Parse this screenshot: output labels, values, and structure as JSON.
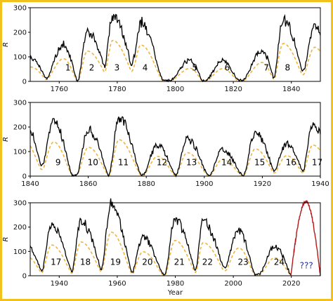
{
  "colors": {
    "frame": "#f2c11b",
    "observed": "#000000",
    "smoothed": "#f0b43c",
    "prediction": "#b01818",
    "unknown_label": "#1f2fa8"
  },
  "chart_data": [
    {
      "type": "line",
      "ylabel": "R",
      "xlim": [
        1750,
        1850
      ],
      "ylim": [
        0,
        300
      ],
      "xticks": [
        1760,
        1780,
        1800,
        1820,
        1840
      ],
      "yticks": [
        0,
        100,
        200,
        300
      ],
      "cycles": [
        {
          "label": "1",
          "min": 1755.2,
          "max": 1761.5,
          "peak": 145
        },
        {
          "label": "2",
          "min": 1766.5,
          "max": 1769.7,
          "peak": 195
        },
        {
          "label": "3",
          "min": 1775.5,
          "max": 1778.4,
          "peak": 265
        },
        {
          "label": "4",
          "min": 1784.7,
          "max": 1788.1,
          "peak": 235
        },
        {
          "label": "5",
          "min": 1798.3,
          "max": 1805.2,
          "peak": 82
        },
        {
          "label": "6",
          "min": 1810.6,
          "max": 1816.4,
          "peak": 80
        },
        {
          "label": "7",
          "min": 1823.3,
          "max": 1829.9,
          "peak": 120
        },
        {
          "label": "8",
          "min": 1833.9,
          "max": 1837.2,
          "peak": 245
        }
      ],
      "series": [
        {
          "style": "solid"
        },
        {
          "style": "dashed"
        }
      ]
    },
    {
      "type": "line",
      "ylabel": "R",
      "xlim": [
        1840,
        1940
      ],
      "ylim": [
        0,
        300
      ],
      "xticks": [
        1840,
        1860,
        1880,
        1900,
        1920,
        1940
      ],
      "yticks": [
        0,
        100,
        200,
        300
      ],
      "cycles": [
        {
          "label": "9",
          "min": 1843.5,
          "max": 1848.1,
          "peak": 220
        },
        {
          "label": "10",
          "min": 1856.0,
          "max": 1860.1,
          "peak": 185
        },
        {
          "label": "11",
          "min": 1867.2,
          "max": 1870.6,
          "peak": 235
        },
        {
          "label": "12",
          "min": 1878.9,
          "max": 1883.9,
          "peak": 125
        },
        {
          "label": "13",
          "min": 1890.2,
          "max": 1894.1,
          "peak": 150
        },
        {
          "label": "14",
          "min": 1902.0,
          "max": 1906.2,
          "peak": 105
        },
        {
          "label": "15",
          "min": 1913.6,
          "max": 1917.6,
          "peak": 175
        },
        {
          "label": "16",
          "min": 1923.6,
          "max": 1928.4,
          "peak": 130
        },
        {
          "label": "17",
          "min": 1933.8,
          "max": 1937.4,
          "peak": 200
        }
      ],
      "series": [
        {
          "style": "solid"
        },
        {
          "style": "dashed"
        }
      ]
    },
    {
      "type": "line",
      "ylabel": "R",
      "xlabel": "Year",
      "xlim": [
        1930,
        2030
      ],
      "ylim": [
        0,
        300
      ],
      "xticks": [
        1940,
        1960,
        1980,
        2000,
        2020
      ],
      "yticks": [
        0,
        100,
        200,
        300
      ],
      "cycles": [
        {
          "label": "17",
          "min": 1933.8,
          "max": 1937.4,
          "peak": 200
        },
        {
          "label": "18",
          "min": 1944.2,
          "max": 1947.5,
          "peak": 220
        },
        {
          "label": "19",
          "min": 1954.3,
          "max": 1957.9,
          "peak": 285
        },
        {
          "label": "20",
          "min": 1964.9,
          "max": 1968.9,
          "peak": 155
        },
        {
          "label": "21",
          "min": 1976.5,
          "max": 1979.9,
          "peak": 230
        },
        {
          "label": "22",
          "min": 1986.8,
          "max": 1989.6,
          "peak": 215
        },
        {
          "label": "23",
          "min": 1996.4,
          "max": 2001.9,
          "peak": 180
        },
        {
          "label": "24",
          "min": 2008.9,
          "max": 2014.3,
          "peak": 115
        }
      ],
      "prediction": {
        "label": "???",
        "min": 2019.8,
        "max": 2025.0,
        "end": 2030.0,
        "peak": 305
      },
      "series": [
        {
          "style": "solid"
        },
        {
          "style": "dashed"
        },
        {
          "style": "solid"
        }
      ]
    }
  ]
}
